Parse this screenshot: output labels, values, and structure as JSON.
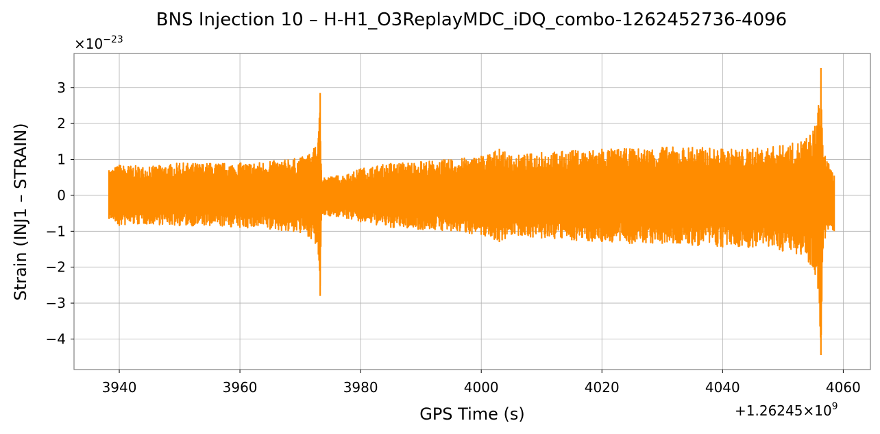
{
  "chart_data": {
    "type": "line",
    "title": "BNS Injection 10 – H-H1_O3ReplayMDC_iDQ_combo-1262452736-4096",
    "xlabel": "GPS Time (s)",
    "ylabel": "Strain (INJ1 – STRAIN)",
    "x_offset_label": "+1.26245×10",
    "x_offset_exponent": "9",
    "y_scale_label": "×10",
    "y_scale_exponent": "−23",
    "xlim": [
      3932.5,
      4064.5
    ],
    "ylim": [
      -4.85,
      3.95
    ],
    "x_ticks": [
      3940,
      3960,
      3980,
      4000,
      4020,
      4040,
      4060
    ],
    "x_tick_labels": [
      "3940",
      "3960",
      "3980",
      "4000",
      "4020",
      "4040",
      "4060"
    ],
    "y_ticks": [
      3,
      2,
      1,
      0,
      -1,
      -2,
      -3,
      -4
    ],
    "y_tick_labels": [
      "3",
      "2",
      "1",
      "0",
      "−1",
      "−2",
      "−3",
      "−4"
    ],
    "grid": true,
    "line_color": "#ff8c00",
    "series": [
      {
        "x": [
          3938.3,
          3940,
          3945,
          3950,
          3955,
          3960,
          3965,
          3968,
          3970,
          3971.5,
          3972.5,
          3973.0,
          3973.3,
          3973.5,
          3974,
          3976,
          3978,
          3980,
          3985,
          3990,
          3995,
          4000,
          4003,
          4005,
          4010,
          4015,
          4020,
          4025,
          4030,
          4035,
          4040,
          4045,
          4050,
          4053,
          4055,
          4055.8,
          4056.3,
          4056.6,
          4057,
          4057.5,
          4058.5
        ],
        "upper": [
          0.7,
          0.85,
          0.8,
          0.9,
          0.9,
          0.9,
          0.95,
          1.0,
          1.05,
          1.15,
          1.35,
          1.6,
          2.85,
          0.7,
          0.5,
          0.55,
          0.6,
          0.75,
          0.9,
          0.95,
          1.0,
          1.1,
          1.3,
          1.1,
          1.2,
          1.25,
          1.3,
          1.3,
          1.35,
          1.35,
          1.3,
          1.3,
          1.4,
          1.5,
          1.8,
          2.3,
          3.55,
          1.4,
          1.1,
          0.9,
          0.55
        ],
        "lower": [
          -0.65,
          -0.85,
          -0.8,
          -0.85,
          -0.85,
          -0.9,
          -0.95,
          -1.0,
          -1.05,
          -1.15,
          -1.35,
          -1.65,
          -2.8,
          -0.7,
          -0.55,
          -0.6,
          -0.65,
          -0.75,
          -0.9,
          -0.95,
          -1.0,
          -1.1,
          -1.3,
          -1.1,
          -1.2,
          -1.25,
          -1.3,
          -1.35,
          -1.35,
          -1.4,
          -1.45,
          -1.45,
          -1.55,
          -1.65,
          -2.0,
          -2.6,
          -4.45,
          -1.5,
          -1.2,
          -0.95,
          -1.0
        ]
      }
    ]
  }
}
